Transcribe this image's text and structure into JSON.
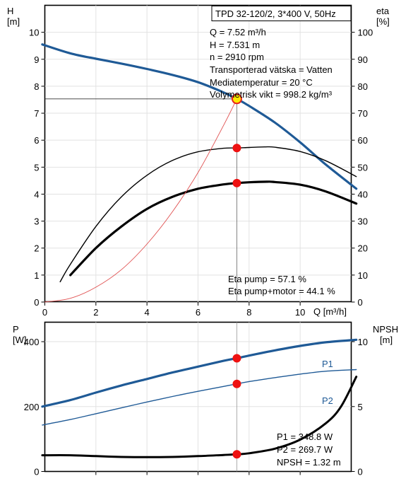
{
  "chart_data": [
    {
      "type": "line",
      "name": "pump-curve-panel",
      "xlabel": "Q [m³/h]",
      "x_ticks": [
        "0",
        "2",
        "4",
        "6",
        "8",
        "10"
      ],
      "xlim": [
        0,
        12
      ],
      "left_axis": {
        "label_line1": "H",
        "label_line2": "[m]",
        "ylim": [
          0,
          11
        ],
        "ticks": [
          "0",
          "1",
          "2",
          "3",
          "4",
          "5",
          "6",
          "7",
          "8",
          "9",
          "10"
        ]
      },
      "right_axis": {
        "label_line1": "eta",
        "label_line2": "[%]",
        "ylim": [
          0,
          110
        ],
        "ticks": [
          "0",
          "10",
          "20",
          "30",
          "40",
          "50",
          "60",
          "70",
          "80",
          "90",
          "100"
        ]
      },
      "title_box": "TPD 32-120/2, 3*400 V, 50Hz",
      "info_lines": [
        "Q = 7.52 m³/h",
        "H = 7.531 m",
        "n = 2910 rpm",
        "Transporterad vätska = Vatten",
        "Mediatemperatur = 20 °C",
        "Volymetrisk vikt = 998.2 kg/m³"
      ],
      "eta_lines": [
        "Eta pump = 57.1 %",
        "Eta pump+motor = 44.1 %"
      ],
      "operating_point": {
        "q": 7.52,
        "h": 7.531,
        "eta_pump": 57.1,
        "eta_pump_motor": 44.1
      },
      "series": [
        {
          "key": "H",
          "axis": "left",
          "color": "#1f5a96",
          "x": [
            -0.1,
            1.0,
            2.0,
            3.0,
            4.0,
            5.0,
            6.0,
            7.0,
            7.52,
            8.0,
            9.0,
            10.0,
            11.0,
            12.2
          ],
          "y": [
            9.55,
            9.22,
            9.02,
            8.84,
            8.64,
            8.42,
            8.15,
            7.77,
            7.53,
            7.27,
            6.66,
            5.92,
            5.1,
            4.2
          ]
        },
        {
          "key": "eta_pump",
          "axis": "right",
          "color": "#000000",
          "x": [
            0.6,
            1.0,
            2.0,
            3.0,
            4.0,
            5.0,
            6.0,
            7.0,
            7.52,
            8.0,
            8.6,
            9.0,
            10.0,
            11.0,
            12.2
          ],
          "y": [
            7.5,
            14,
            28,
            39,
            47,
            52.5,
            55.7,
            57,
            57.1,
            57.3,
            57.5,
            57.4,
            55.8,
            52.4,
            46.5
          ]
        },
        {
          "key": "eta_pump_motor",
          "axis": "right",
          "color": "#000000",
          "x": [
            1.0,
            2.0,
            3.0,
            4.0,
            5.0,
            6.0,
            7.0,
            7.52,
            8.0,
            8.7,
            9.0,
            10.0,
            11.0,
            12.2
          ],
          "y": [
            10,
            20,
            28,
            34.5,
            39,
            42,
            43.6,
            44.1,
            44.4,
            44.6,
            44.5,
            43.5,
            41,
            36.5
          ]
        },
        {
          "key": "system_curve",
          "axis": "left",
          "color": "#e05050",
          "x": [
            0.0,
            1.0,
            2.0,
            3.0,
            4.0,
            5.0,
            6.0,
            7.0,
            7.52
          ],
          "y": [
            0.0,
            0.14,
            0.55,
            1.2,
            2.15,
            3.35,
            4.8,
            6.55,
            7.53
          ]
        }
      ],
      "markers": [
        {
          "x": 7.52,
          "axis": "left",
          "y": 7.531,
          "style": "highlight"
        },
        {
          "x": 7.52,
          "axis": "right",
          "y": 57.1,
          "style": "point"
        },
        {
          "x": 7.52,
          "axis": "right",
          "y": 44.1,
          "style": "point"
        }
      ]
    },
    {
      "type": "line",
      "name": "power-npsh-panel",
      "xlim": [
        0,
        12
      ],
      "left_axis": {
        "label_line1": "P",
        "label_line2": "[W]",
        "ylim": [
          0,
          460
        ],
        "ticks": [
          "0",
          "200",
          "400"
        ]
      },
      "right_axis": {
        "label_line1": "NPSH",
        "label_line2": "[m]",
        "ylim": [
          0,
          11.5
        ],
        "ticks": [
          "0",
          "5",
          "10"
        ]
      },
      "info_lines": [
        "P1 = 348.8 W",
        "P2 = 269.7 W",
        "NPSH = 1.32 m"
      ],
      "series": [
        {
          "key": "P1",
          "label": "P1",
          "axis": "left",
          "color": "#1f5a96",
          "x": [
            -0.1,
            1.0,
            2.0,
            3.0,
            4.0,
            5.0,
            6.0,
            7.0,
            7.52,
            8.0,
            9.0,
            10.0,
            11.0,
            12.2
          ],
          "y": [
            200,
            220,
            243,
            265,
            285,
            305,
            323,
            341,
            349,
            357,
            373,
            387,
            398,
            406
          ]
        },
        {
          "key": "P2",
          "label": "P2",
          "axis": "left",
          "color": "#1f5a96",
          "x": [
            -0.1,
            1.0,
            2.0,
            3.0,
            4.0,
            5.0,
            6.0,
            7.0,
            7.52,
            8.0,
            9.0,
            10.0,
            11.0,
            12.2
          ],
          "y": [
            143,
            160,
            178,
            196,
            214,
            231,
            247,
            262,
            270,
            277,
            289,
            300,
            309,
            314
          ]
        },
        {
          "key": "NPSH",
          "axis": "right",
          "color": "#000000",
          "x": [
            -0.1,
            1.0,
            2.0,
            3.0,
            4.0,
            5.0,
            6.0,
            7.0,
            7.52,
            8.0,
            9.0,
            10.0,
            11.0,
            11.6,
            12.2
          ],
          "y": [
            1.25,
            1.25,
            1.18,
            1.12,
            1.1,
            1.12,
            1.18,
            1.27,
            1.32,
            1.4,
            1.75,
            2.45,
            3.7,
            5.0,
            7.3
          ]
        }
      ],
      "markers": [
        {
          "x": 7.52,
          "axis": "left",
          "y": 348.8,
          "style": "point"
        },
        {
          "x": 7.52,
          "axis": "left",
          "y": 269.7,
          "style": "point"
        },
        {
          "x": 7.52,
          "axis": "right",
          "y": 1.32,
          "style": "point"
        }
      ]
    }
  ]
}
